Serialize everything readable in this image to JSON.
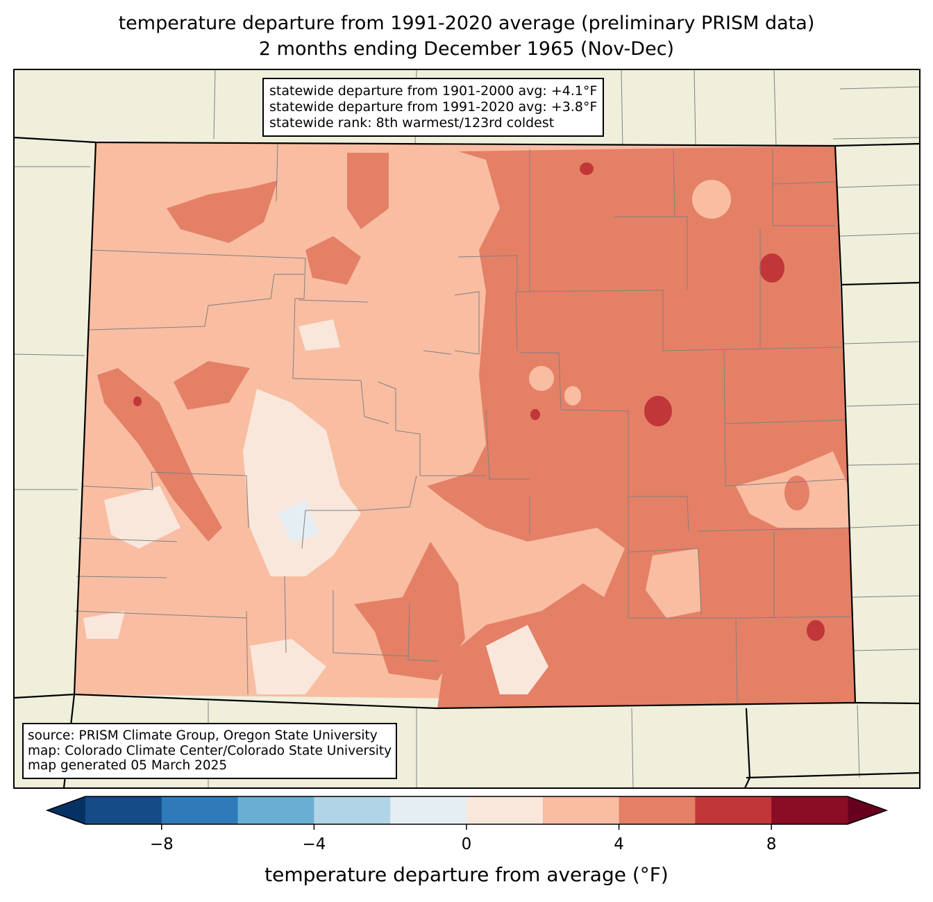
{
  "title": {
    "line1": "temperature departure from 1991-2020 average (preliminary PRISM data)",
    "line2": "2 months ending December 1965 (Nov-Dec)"
  },
  "stats": {
    "line1": "statewide departure from 1901-2000 avg: +4.1°F",
    "line2": "statewide departure from 1991-2020 avg: +3.8°F",
    "line3": "statewide rank: 8th warmest/123rd coldest"
  },
  "source": {
    "line1": "source: PRISM Climate Group, Oregon State University",
    "line2": "map: Colorado Climate Center/Colorado State University",
    "line3": "map generated 05 March 2025"
  },
  "colorbar": {
    "label": "temperature departure from average (°F)",
    "bounds": [
      -10,
      -8,
      -6,
      -4,
      -2,
      0,
      2,
      4,
      6,
      8,
      10
    ],
    "colors": [
      "#144c87",
      "#2f7ab9",
      "#6aafd3",
      "#b1d5e7",
      "#e5eef3",
      "#f9e7dc",
      "#f9bda2",
      "#e48066",
      "#c13639",
      "#8a0c25"
    ],
    "under_color": "#063263",
    "over_color": "#67001f",
    "ticks": [
      "−8",
      "−4",
      "0",
      "4",
      "8"
    ],
    "tick_values": [
      -8,
      -4,
      0,
      4,
      8
    ]
  },
  "map_colors": {
    "land": "#efefdc",
    "state_border": "#000000",
    "county_border": "#808080"
  }
}
